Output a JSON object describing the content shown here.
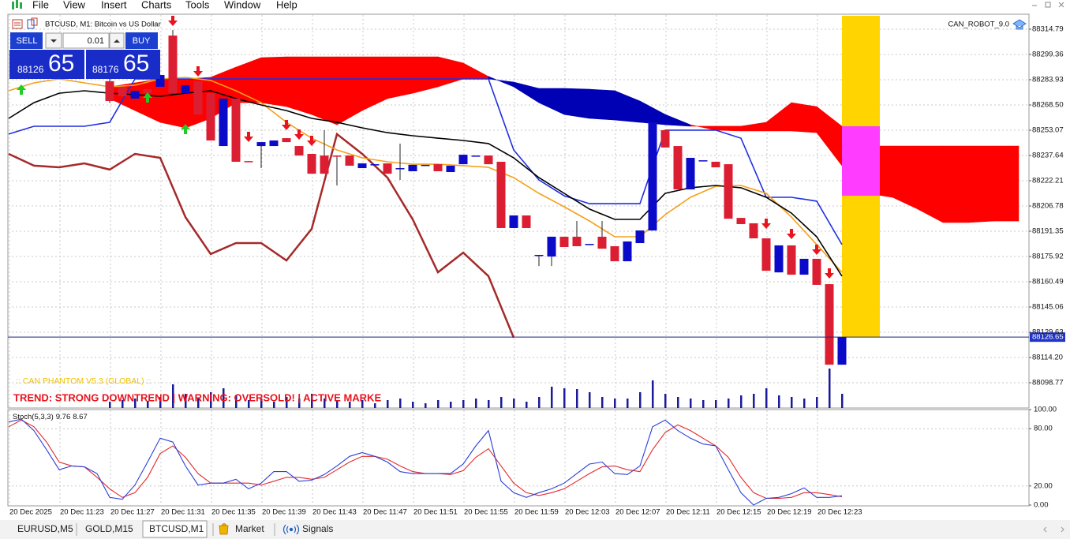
{
  "menu": [
    "File",
    "View",
    "Insert",
    "Charts",
    "Tools",
    "Window",
    "Help"
  ],
  "chart": {
    "title": "BTCUSD, M1:  Bitcoin vs US Dollar",
    "robot": "CAN_ROBOT_9.0",
    "trade_panel": {
      "sell": "SELL",
      "buy": "BUY",
      "volume": "0.01",
      "bid_main": "88126",
      "bid_pips": "65",
      "ask_main": "88176",
      "ask_pips": "65"
    },
    "ylim": [
      88083.34,
      88322.99
    ],
    "yticks": [
      88314.79,
      88299.36,
      88283.93,
      {
        "value": 88268.5,
        "label": "88268.50"
      },
      88253.07,
      88237.64,
      88222.21,
      88206.78,
      88191.35,
      88175.92,
      88160.49,
      88145.06,
      88129.63,
      {
        "value": 88114.2,
        "label": "88114.20"
      },
      88098.77
    ],
    "xticks": [
      "20 Dec 2025",
      "20 Dec 11:23",
      "20 Dec 11:27",
      "20 Dec 11:31",
      "20 Dec 11:35",
      "20 Dec 11:39",
      "20 Dec 11:43",
      "20 Dec 11:47",
      "20 Dec 11:51",
      "20 Dec 11:55",
      "20 Dec 11:59",
      "20 Dec 12:03",
      "20 Dec 12:07",
      "20 Dec 12:11",
      "20 Dec 12:15",
      "20 Dec 12:19",
      "20 Dec 12:23"
    ],
    "current_price": 88126.65,
    "bull_color": "#0a0ac8",
    "bear_color": "#dc1e32",
    "candles": [
      [
        88283.0,
        88284.4,
        88269.9,
        88270.9
      ],
      [
        88279.6,
        88279.6,
        88273.8,
        88273.8
      ],
      [
        88272.4,
        88277.2,
        88272.4,
        88277.2
      ],
      [
        88278.1,
        88278.1,
        88275.7,
        88275.7
      ],
      [
        88279.6,
        88286.8,
        88279.6,
        88286.8
      ],
      [
        88310.9,
        88314.3,
        88274.8,
        88275.7
      ],
      [
        88275.7,
        88280.6,
        88275.7,
        88280.6
      ],
      [
        88283.0,
        88283.0,
        88262.7,
        88262.7
      ],
      [
        88275.7,
        88275.7,
        88246.8,
        88246.8
      ],
      [
        88243.4,
        88272.4,
        88243.4,
        88272.4
      ],
      [
        88272.4,
        88272.4,
        88233.8,
        88233.8
      ],
      [
        88234.2,
        88234.2,
        88233.8,
        88233.8
      ],
      [
        88243.4,
        88245.8,
        88229.9,
        88245.8
      ],
      [
        88243.4,
        88246.8,
        88243.4,
        88246.8
      ],
      [
        88248.2,
        88248.2,
        88245.8,
        88245.8
      ],
      [
        88243.4,
        88243.4,
        88237.6,
        88237.6
      ],
      [
        88238.6,
        88238.6,
        88226.5,
        88226.5
      ],
      [
        88237.6,
        88253.1,
        88226.5,
        88226.5
      ],
      [
        88237.6,
        88237.6,
        88219.3,
        88237.2
      ],
      [
        88237.6,
        88237.6,
        88231.4,
        88231.4
      ],
      [
        88229.9,
        88232.8,
        88229.9,
        88232.8
      ],
      [
        88232.3,
        88232.3,
        88232.3,
        88232.3
      ],
      [
        88232.8,
        88232.8,
        88226.5,
        88226.5
      ],
      [
        88229.9,
        88244.9,
        88222.7,
        88229.9
      ],
      [
        88228.0,
        88231.9,
        88228.0,
        88231.9
      ],
      [
        88231.9,
        88231.9,
        88231.9,
        88231.9
      ],
      [
        88232.3,
        88232.3,
        88228.0,
        88228.0
      ],
      [
        88227.5,
        88231.4,
        88227.5,
        88231.4
      ],
      [
        88232.3,
        88238.1,
        88232.3,
        88238.1
      ],
      [
        88237.6,
        88237.6,
        88237.6,
        88237.6
      ],
      [
        88237.6,
        88237.6,
        88232.3,
        88232.3
      ],
      [
        88233.8,
        88233.8,
        88193.3,
        88193.3
      ],
      [
        88193.3,
        88201.0,
        88193.3,
        88201.0
      ],
      [
        88201.0,
        88201.0,
        88193.3,
        88193.3
      ],
      [
        88176.9,
        88176.9,
        88170.1,
        88176.9
      ],
      [
        88175.9,
        88188.0,
        88170.1,
        88188.0
      ],
      [
        88188.0,
        88188.0,
        88181.7,
        88181.7
      ],
      [
        88188.0,
        88197.6,
        88182.2,
        88182.2
      ],
      [
        88183.6,
        88183.6,
        88183.6,
        88183.6
      ],
      [
        88188.0,
        88197.6,
        88180.7,
        88180.7
      ],
      [
        88182.2,
        88182.2,
        88173.0,
        88173.0
      ],
      [
        88173.0,
        88185.1,
        88173.0,
        88185.1
      ],
      [
        88184.1,
        88191.8,
        88184.1,
        88191.8
      ],
      [
        88191.8,
        88257.9,
        88191.8,
        88257.9
      ],
      [
        88253.1,
        88253.1,
        88242.5,
        88242.5
      ],
      [
        88243.4,
        88243.4,
        88216.9,
        88216.9
      ],
      [
        88216.9,
        88236.2,
        88216.9,
        88236.2
      ],
      [
        88234.7,
        88234.7,
        88234.7,
        88234.7
      ],
      [
        88233.8,
        88233.8,
        88230.4,
        88230.4
      ],
      [
        88232.3,
        88232.3,
        88199.0,
        88199.0
      ],
      [
        88199.5,
        88199.5,
        88195.7,
        88195.7
      ],
      [
        88196.2,
        88196.2,
        88187.0,
        88187.0
      ],
      [
        88187.0,
        88187.0,
        88167.2,
        88167.2
      ],
      [
        88166.2,
        88182.7,
        88166.2,
        88182.7
      ],
      [
        88182.7,
        88182.7,
        88164.8,
        88164.8
      ],
      [
        88164.8,
        88174.5,
        88164.8,
        88174.5
      ],
      [
        88174.5,
        88174.5,
        88158.6,
        88158.6
      ],
      [
        88159.0,
        88159.0,
        88109.8,
        88109.8
      ],
      [
        88109.8,
        88126.65,
        88109.8,
        88126.65
      ]
    ],
    "volume_color": "#1a1a9a",
    "volumes": [
      8,
      10,
      12,
      9,
      14,
      30,
      18,
      12,
      20,
      25,
      16,
      10,
      12,
      8,
      14,
      12,
      18,
      12,
      10,
      8,
      10,
      6,
      10,
      12,
      8,
      6,
      10,
      8,
      10,
      12,
      10,
      14,
      12,
      8,
      14,
      27,
      25,
      24,
      20,
      14,
      12,
      12,
      20,
      35,
      18,
      14,
      12,
      10,
      10,
      12,
      16,
      18,
      25,
      16,
      14,
      12,
      14,
      50,
      18
    ],
    "cloud": {
      "up_color": "#ff0000",
      "down_color": "#0000b4",
      "span_a": [
        null,
        null,
        null,
        null,
        88279.6,
        88282.0,
        88284.4,
        88284.4,
        88285.4,
        88291.6,
        88297.4,
        88297.9,
        88297.9,
        88297.9,
        88297.9,
        88297.9,
        88297.9,
        88297.9,
        88294.1,
        88285.9,
        88279.6,
        88269.9,
        88262.7,
        88260.3,
        88259.3,
        88257.9,
        88256.4,
        88255.5,
        88255.5,
        88255.5,
        88257.9,
        88269.9,
        88267.5,
        88255.5,
        88243.4,
        88243.4,
        88243.4,
        88243.4,
        88243.4,
        88243.4,
        88243.4
      ],
      "span_b": [
        null,
        null,
        null,
        null,
        88272.4,
        88265.1,
        88257.9,
        88254.5,
        88260.3,
        88269.9,
        88269.9,
        88267.5,
        88262.7,
        88256.4,
        88265.1,
        88272.4,
        88275.7,
        88279.6,
        88284.4,
        88284.4,
        88282.5,
        88278.6,
        88278.6,
        88278.1,
        88277.2,
        88270.9,
        88262.7,
        88256.4,
        88253.1,
        88252.6,
        88252.6,
        88252.6,
        88251.6,
        88231.4,
        88214.5,
        88212.1,
        88204.9,
        88196.7,
        88196.7,
        88197.6,
        88197.6
      ]
    },
    "lines": [
      {
        "color": "#1f2fe0",
        "values": [
          88250.7,
          88255.5,
          88255.5,
          88255.5,
          88257.9,
          88284.4,
          88284.4,
          88284.4,
          88284.4,
          88284.4,
          88284.4,
          88284.4,
          88284.4,
          88284.4,
          88284.4,
          88284.4,
          88284.4,
          88284.4,
          88284.4,
          88284.4,
          88241.0,
          88222.7,
          88213.0,
          88208.2,
          88208.2,
          88208.2,
          88253.1,
          88253.1,
          88253.1,
          88248.2,
          88212.1,
          88212.1,
          88209.7,
          88183.2,
          null,
          null,
          null,
          null,
          null,
          null,
          null
        ]
      },
      {
        "color": "#a52a2a",
        "values": [
          88238.6,
          88231.4,
          88230.4,
          88232.8,
          88229.0,
          88238.6,
          88236.2,
          88200.0,
          88177.4,
          88184.1,
          88184.1,
          88173.5,
          88192.8,
          88250.7,
          88238.6,
          88224.1,
          88198.6,
          88166.3,
          88178.3,
          88163.9,
          88126.3,
          null,
          null,
          null,
          null,
          null,
          null,
          null,
          null,
          null,
          null,
          null,
          null,
          null,
          null,
          null,
          null,
          null,
          null,
          null,
          null
        ]
      },
      {
        "color": "#f5a01a",
        "values": [
          88277.2,
          88282.0,
          88284.4,
          88282.0,
          88279.6,
          88280.6,
          88284.4,
          88285.4,
          88283.5,
          88277.2,
          88269.9,
          88257.9,
          88248.2,
          88241.0,
          88236.2,
          88233.8,
          88232.3,
          88232.3,
          88231.4,
          88230.4,
          88224.1,
          88214.5,
          88206.3,
          88197.6,
          88188.0,
          88188.0,
          88201.5,
          88212.1,
          88218.8,
          88219.3,
          88214.5,
          88200.0,
          88183.2,
          88166.3,
          null,
          null,
          null,
          null,
          null,
          null,
          null
        ]
      },
      {
        "color": "#000000",
        "values": [
          88260.3,
          88269.9,
          88275.7,
          88277.2,
          88275.7,
          88274.8,
          88273.8,
          88275.7,
          88277.2,
          88272.4,
          88268.5,
          88265.1,
          88260.3,
          88257.9,
          88254.5,
          88251.6,
          88249.7,
          88248.2,
          88246.8,
          88244.9,
          88236.2,
          88224.1,
          88214.5,
          88204.9,
          88198.6,
          88198.6,
          88214.5,
          88217.9,
          88219.3,
          88217.9,
          88212.1,
          88202.4,
          88188.0,
          88163.9,
          null,
          null,
          null,
          null,
          null,
          null,
          null
        ]
      }
    ],
    "notes": [
      ":: CAN PHANTOM V5.3 (GLOBAL) ::",
      "TREND: STRONG DOWNTREND  |  WARNING: OVERSOLD!  |  ACTIVE MARKE"
    ]
  },
  "stochastic": {
    "label": "Stoch(5,3,3)",
    "ylim": [
      0,
      100
    ],
    "yticks": [
      {
        "value": 100,
        "label": "100.00"
      },
      {
        "value": 80,
        "label": "80.00"
      },
      {
        "value": 20,
        "label": "20.00"
      },
      {
        "value": 0,
        "label": "0.00"
      }
    ],
    "main": {
      "color": "#2a3fd8",
      "values": [
        87,
        90,
        78,
        58,
        37,
        41,
        40,
        33,
        8,
        6,
        21,
        45,
        70,
        66,
        41,
        21,
        23,
        23,
        27,
        17,
        23,
        35,
        35,
        25,
        26,
        32,
        41,
        51,
        55,
        51,
        45,
        35,
        33,
        33,
        33,
        33,
        43,
        62,
        78,
        25,
        13,
        8,
        13,
        17,
        23,
        33,
        43,
        45,
        33,
        32,
        41,
        82,
        89,
        78,
        70,
        64,
        62,
        37,
        13,
        0,
        7,
        8,
        12,
        18,
        8,
        8,
        9.76
      ]
    },
    "signal": {
      "color": "#e52a2a",
      "values": [
        82,
        89,
        82,
        66,
        45,
        41,
        40,
        29,
        17,
        8,
        13,
        29,
        54,
        62,
        50,
        33,
        23,
        23,
        23,
        23,
        21,
        25,
        29,
        29,
        27,
        29,
        37,
        45,
        51,
        51,
        48,
        41,
        35,
        33,
        33,
        32,
        36,
        50,
        59,
        41,
        23,
        13,
        10,
        13,
        17,
        25,
        33,
        40,
        41,
        37,
        35,
        58,
        76,
        84,
        78,
        70,
        62,
        50,
        29,
        13,
        7,
        7,
        8,
        13,
        13,
        11,
        8.67
      ]
    }
  },
  "tabs": [
    "EURUSD,M5",
    "GOLD,M15",
    "BTCUSD,M1",
    "Market",
    "Signals"
  ]
}
